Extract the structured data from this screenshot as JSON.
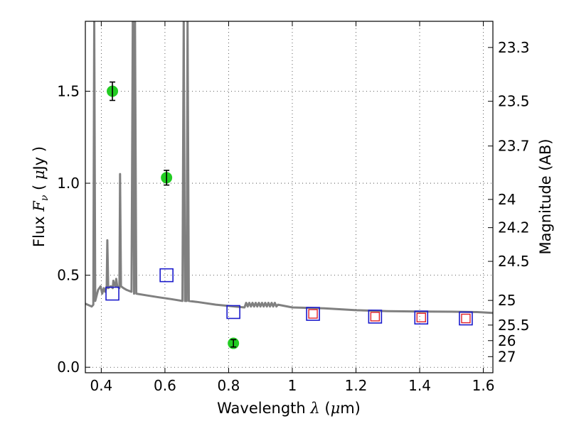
{
  "chart_data": {
    "type": "scatter",
    "title": "",
    "xlabel": "Wavelength  λ (μm)",
    "ylabel": "Flux  F_ν  ( μJy )",
    "ylabel_right": "Magnitude (AB)",
    "xlim": [
      0.35,
      1.63
    ],
    "ylim": [
      -0.03,
      1.88
    ],
    "grid": true,
    "x_ticks": [
      "0.4",
      "0.6",
      "0.8",
      "1",
      "1.2",
      "1.4",
      "1.6"
    ],
    "x_tick_values": [
      0.4,
      0.6,
      0.8,
      1.0,
      1.2,
      1.4,
      1.6
    ],
    "y_ticks": [
      "0.0",
      "0.5",
      "1.0",
      "1.5"
    ],
    "y_tick_values": [
      0.0,
      0.5,
      1.0,
      1.5
    ],
    "mag_ticks": [
      "23.3",
      "23.5",
      "23.7",
      "24",
      "24.2",
      "24.5",
      "25",
      "25.5",
      "26",
      "27"
    ],
    "mag_tick_values": [
      23.3,
      23.5,
      23.7,
      24.0,
      24.2,
      24.5,
      25.0,
      25.5,
      26.0,
      27.0
    ],
    "series": [
      {
        "marker": "circle",
        "color": "#22cc22",
        "points": [
          {
            "x": 0.435,
            "y": 1.5,
            "err": 0.05
          },
          {
            "x": 0.605,
            "y": 1.03,
            "err": 0.04
          },
          {
            "x": 0.815,
            "y": 0.13,
            "err": 0.02
          }
        ]
      },
      {
        "marker": "open-square",
        "color": "#1a1acc",
        "points": [
          {
            "x": 0.435,
            "y": 0.4
          },
          {
            "x": 0.605,
            "y": 0.5
          },
          {
            "x": 0.815,
            "y": 0.3
          },
          {
            "x": 1.065,
            "y": 0.29
          },
          {
            "x": 1.26,
            "y": 0.275
          },
          {
            "x": 1.405,
            "y": 0.27
          },
          {
            "x": 1.545,
            "y": 0.265
          }
        ]
      },
      {
        "marker": "open-square-small",
        "color": "#e0202a",
        "points": [
          {
            "x": 1.065,
            "y": 0.29
          },
          {
            "x": 1.26,
            "y": 0.275
          },
          {
            "x": 1.405,
            "y": 0.27
          },
          {
            "x": 1.545,
            "y": 0.265
          }
        ]
      },
      {
        "marker": "line",
        "color": "#808080",
        "points": [
          {
            "x": 0.35,
            "y": 0.345
          },
          {
            "x": 0.37,
            "y": 0.33
          },
          {
            "x": 0.375,
            "y": 0.34
          },
          {
            "x": 0.378,
            "y": 1.9
          },
          {
            "x": 0.381,
            "y": 0.36
          },
          {
            "x": 0.39,
            "y": 0.42
          },
          {
            "x": 0.398,
            "y": 0.44
          },
          {
            "x": 0.403,
            "y": 0.4
          },
          {
            "x": 0.408,
            "y": 0.43
          },
          {
            "x": 0.412,
            "y": 0.41
          },
          {
            "x": 0.417,
            "y": 0.44
          },
          {
            "x": 0.419,
            "y": 0.69
          },
          {
            "x": 0.422,
            "y": 0.43
          },
          {
            "x": 0.43,
            "y": 0.44
          },
          {
            "x": 0.436,
            "y": 0.43
          },
          {
            "x": 0.438,
            "y": 0.47
          },
          {
            "x": 0.441,
            "y": 0.45
          },
          {
            "x": 0.445,
            "y": 0.44
          },
          {
            "x": 0.447,
            "y": 0.48
          },
          {
            "x": 0.45,
            "y": 0.44
          },
          {
            "x": 0.457,
            "y": 0.43
          },
          {
            "x": 0.459,
            "y": 1.05
          },
          {
            "x": 0.462,
            "y": 0.44
          },
          {
            "x": 0.47,
            "y": 0.43
          },
          {
            "x": 0.48,
            "y": 0.42
          },
          {
            "x": 0.495,
            "y": 0.41
          },
          {
            "x": 0.499,
            "y": 1.9
          },
          {
            "x": 0.503,
            "y": 0.4
          },
          {
            "x": 0.506,
            "y": 1.9
          },
          {
            "x": 0.51,
            "y": 0.4
          },
          {
            "x": 0.545,
            "y": 0.39
          },
          {
            "x": 0.58,
            "y": 0.38
          },
          {
            "x": 0.62,
            "y": 0.37
          },
          {
            "x": 0.655,
            "y": 0.36
          },
          {
            "x": 0.659,
            "y": 1.9
          },
          {
            "x": 0.663,
            "y": 0.36
          },
          {
            "x": 0.668,
            "y": 0.36
          },
          {
            "x": 0.671,
            "y": 1.9
          },
          {
            "x": 0.675,
            "y": 0.36
          },
          {
            "x": 0.7,
            "y": 0.355
          },
          {
            "x": 0.76,
            "y": 0.34
          },
          {
            "x": 0.82,
            "y": 0.33
          },
          {
            "x": 0.85,
            "y": 0.325
          },
          {
            "x": 0.855,
            "y": 0.35
          },
          {
            "x": 0.86,
            "y": 0.33
          },
          {
            "x": 0.865,
            "y": 0.35
          },
          {
            "x": 0.87,
            "y": 0.33
          },
          {
            "x": 0.875,
            "y": 0.35
          },
          {
            "x": 0.88,
            "y": 0.33
          },
          {
            "x": 0.885,
            "y": 0.35
          },
          {
            "x": 0.89,
            "y": 0.33
          },
          {
            "x": 0.895,
            "y": 0.35
          },
          {
            "x": 0.9,
            "y": 0.33
          },
          {
            "x": 0.905,
            "y": 0.35
          },
          {
            "x": 0.91,
            "y": 0.33
          },
          {
            "x": 0.915,
            "y": 0.35
          },
          {
            "x": 0.92,
            "y": 0.33
          },
          {
            "x": 0.925,
            "y": 0.35
          },
          {
            "x": 0.93,
            "y": 0.33
          },
          {
            "x": 0.935,
            "y": 0.35
          },
          {
            "x": 0.94,
            "y": 0.33
          },
          {
            "x": 0.945,
            "y": 0.35
          },
          {
            "x": 0.95,
            "y": 0.33
          },
          {
            "x": 0.955,
            "y": 0.34
          },
          {
            "x": 1.0,
            "y": 0.325
          },
          {
            "x": 1.1,
            "y": 0.32
          },
          {
            "x": 1.2,
            "y": 0.31
          },
          {
            "x": 1.3,
            "y": 0.305
          },
          {
            "x": 1.4,
            "y": 0.303
          },
          {
            "x": 1.5,
            "y": 0.302
          },
          {
            "x": 1.58,
            "y": 0.3
          },
          {
            "x": 1.63,
            "y": 0.295
          }
        ]
      }
    ]
  },
  "colors": {
    "grid": "#000000",
    "axis": "#000000"
  }
}
